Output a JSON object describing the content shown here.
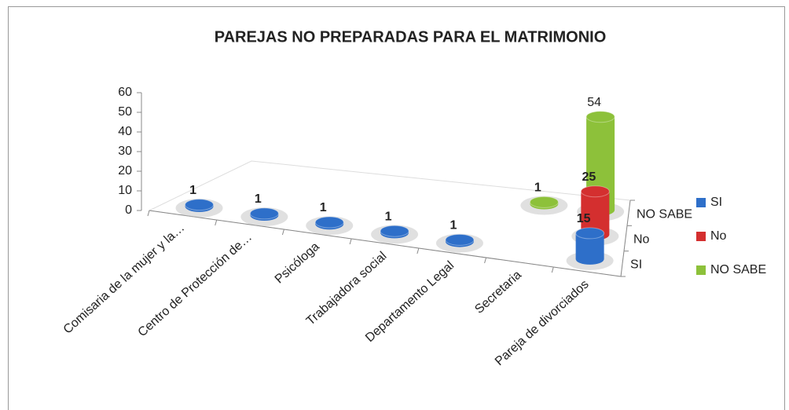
{
  "chart_data": {
    "type": "bar3d",
    "title": "PAREJAS NO PREPARADAS PARA EL MATRIMONIO",
    "categories": [
      "Comisaria de la  mujer y la…",
      "Centro de Protección de…",
      "Psicóloga",
      "Trabajadora social",
      "Departamento Legal",
      "Secretaria",
      "Pareja de divorciados"
    ],
    "series": [
      {
        "name": "SI",
        "color": "#2e6fc9",
        "values": [
          1,
          1,
          1,
          1,
          1,
          null,
          15
        ]
      },
      {
        "name": "No",
        "color": "#d42f2f",
        "values": [
          null,
          null,
          null,
          null,
          null,
          null,
          25
        ]
      },
      {
        "name": "NO SABE",
        "color": "#8dc13a",
        "values": [
          null,
          null,
          null,
          null,
          null,
          1,
          54
        ]
      }
    ],
    "ylim": [
      0,
      60
    ],
    "yticks": [
      0,
      10,
      20,
      30,
      40,
      50,
      60
    ],
    "legend": "right"
  }
}
